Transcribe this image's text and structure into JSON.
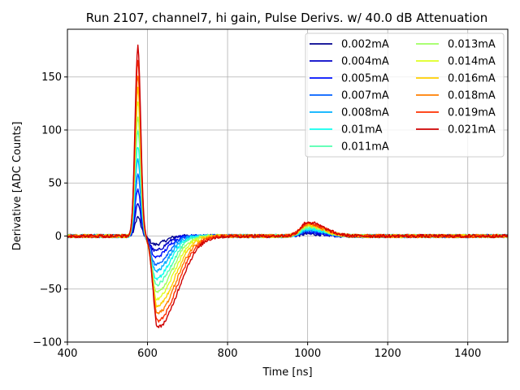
{
  "chart_data": {
    "type": "line",
    "title": "Run 2107, channel7, hi gain, Pulse Derivs. w/ 40.0 dB Attenuation",
    "xlabel": "Time [ns]",
    "ylabel": "Derivative [ADC Counts]",
    "xlim": [
      400,
      1500
    ],
    "ylim": [
      -100,
      195
    ],
    "xticks": [
      400,
      600,
      800,
      1000,
      1200,
      1400
    ],
    "yticks": [
      -100,
      -50,
      0,
      50,
      100,
      150
    ],
    "grid": true,
    "legend_placement": "top-right",
    "legend_columns": 2,
    "series": [
      {
        "name": "0.002mA",
        "color": "#00008f",
        "peak": 18,
        "trough": -8,
        "bump": 2
      },
      {
        "name": "0.004mA",
        "color": "#0000c8",
        "peak": 31,
        "trough": -14,
        "bump": 3
      },
      {
        "name": "0.005mA",
        "color": "#0010ff",
        "peak": 44,
        "trough": -20,
        "bump": 4
      },
      {
        "name": "0.007mA",
        "color": "#0060ff",
        "peak": 58,
        "trough": -27,
        "bump": 5
      },
      {
        "name": "0.008mA",
        "color": "#00b0ff",
        "peak": 72,
        "trough": -33,
        "bump": 6
      },
      {
        "name": "0.01mA",
        "color": "#10ffef",
        "peak": 85,
        "trough": -40,
        "bump": 7
      },
      {
        "name": "0.011mA",
        "color": "#50ffaf",
        "peak": 100,
        "trough": -46,
        "bump": 8
      },
      {
        "name": "0.013mA",
        "color": "#9fff60",
        "peak": 113,
        "trough": -53,
        "bump": 9
      },
      {
        "name": "0.014mA",
        "color": "#dfff20",
        "peak": 126,
        "trough": -59,
        "bump": 10
      },
      {
        "name": "0.016mA",
        "color": "#ffcf00",
        "peak": 139,
        "trough": -66,
        "bump": 10
      },
      {
        "name": "0.018mA",
        "color": "#ff7f00",
        "peak": 152,
        "trough": -73,
        "bump": 11
      },
      {
        "name": "0.019mA",
        "color": "#ff3000",
        "peak": 165,
        "trough": -80,
        "bump": 12
      },
      {
        "name": "0.021mA",
        "color": "#cf0000",
        "peak": 179,
        "trough": -86,
        "bump": 13
      }
    ]
  }
}
